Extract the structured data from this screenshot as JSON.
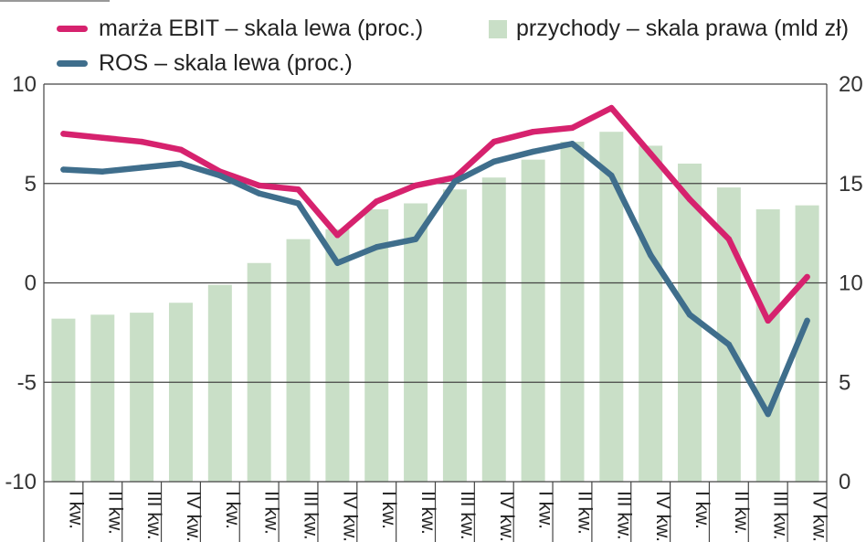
{
  "chart_data": {
    "type": "bar+line",
    "title": "",
    "categories": [
      "I kw.",
      "II kw.",
      "III kw.",
      "IV kw.",
      "I kw.",
      "II kw.",
      "III kw.",
      "IV kw.",
      "I kw.",
      "II kw.",
      "III kw.",
      "IV kw.",
      "I kw.",
      "II kw.",
      "III kw.",
      "IV kw.",
      "I kw.",
      "II kw.",
      "III kw.",
      "IV kw."
    ],
    "left_axis": {
      "ylim": [
        -10,
        10
      ],
      "ticks": [
        "10",
        "5",
        "0",
        "-5",
        "-10"
      ],
      "tick_values": [
        10,
        5,
        0,
        -5,
        -10
      ]
    },
    "right_axis": {
      "ylim": [
        0,
        20
      ],
      "ticks": [
        "20",
        "15",
        "10",
        "5",
        "0"
      ],
      "tick_values": [
        20,
        15,
        10,
        5,
        0
      ]
    },
    "grid": true,
    "series": [
      {
        "name": "marża EBIT – skala lewa (proc.)",
        "type": "line",
        "axis": "left",
        "color": "#d6226e",
        "values": [
          7.5,
          7.3,
          7.1,
          6.7,
          5.6,
          4.9,
          4.7,
          2.4,
          4.1,
          4.9,
          5.3,
          7.1,
          7.6,
          7.8,
          8.8,
          6.5,
          4.2,
          2.2,
          -1.9,
          0.3
        ]
      },
      {
        "name": "ROS – skala lewa (proc.)",
        "type": "line",
        "axis": "left",
        "color": "#3f6e8c",
        "values": [
          5.7,
          5.6,
          5.8,
          6.0,
          5.4,
          4.5,
          4.0,
          1.0,
          1.8,
          2.2,
          5.1,
          6.1,
          6.6,
          7.0,
          5.4,
          1.4,
          -1.6,
          -3.1,
          -6.6,
          -1.9
        ]
      },
      {
        "name": "przychody  – skala prawa (mld zł)",
        "type": "bar",
        "axis": "right",
        "color": "#c9dfc7",
        "values": [
          8.2,
          8.4,
          8.5,
          9.0,
          9.9,
          11.0,
          12.2,
          12.7,
          13.7,
          14.0,
          14.7,
          15.3,
          16.2,
          17.1,
          17.6,
          16.9,
          16.0,
          14.8,
          13.7,
          13.9
        ]
      }
    ]
  },
  "legend": {
    "ebit": "marża EBIT – skala lewa (proc.)",
    "ros": "ROS – skala lewa (proc.)",
    "revenue": "przychody  – skala prawa (mld zł)"
  }
}
